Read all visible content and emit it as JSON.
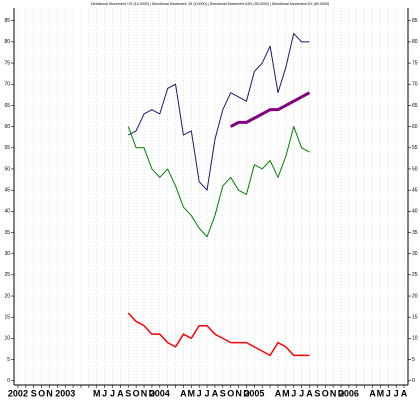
{
  "chart_data": {
    "type": "line",
    "title": "Directional Movement +DI (14.0000) | Directional Movement -DI (5.0000) | Directional Movement ADX (90.0000) | Directional Movement DX (50.0000)",
    "categories": [
      "2002",
      null,
      "S",
      "O",
      "N",
      null,
      "2003",
      null,
      null,
      null,
      "M",
      "J",
      "J",
      "A",
      "S",
      "O",
      "N",
      "D",
      "2004",
      null,
      null,
      "A",
      "M",
      "J",
      "J",
      "A",
      "S",
      "O",
      "N",
      "D",
      "2005",
      null,
      null,
      "A",
      "M",
      "J",
      "J",
      "A",
      "S",
      "O",
      "N",
      "D",
      "2006",
      null,
      null,
      "A",
      "M",
      "J",
      "J",
      "A"
    ],
    "series": [
      {
        "name": "+DI",
        "color": "#1a1a6e",
        "width": 1,
        "values": [
          null,
          null,
          null,
          null,
          null,
          null,
          null,
          null,
          null,
          null,
          null,
          null,
          null,
          null,
          58,
          59,
          63,
          64,
          63,
          69,
          70,
          58,
          59,
          47,
          45,
          57,
          64,
          68,
          67,
          66,
          73,
          75,
          79,
          68,
          74,
          82,
          80,
          80,
          null,
          null,
          null,
          null,
          null,
          null,
          null,
          null,
          null,
          null,
          null,
          null
        ]
      },
      {
        "name": "-DI",
        "color": "#008000",
        "width": 1,
        "values": [
          null,
          null,
          null,
          null,
          null,
          null,
          null,
          null,
          null,
          null,
          null,
          null,
          null,
          null,
          60,
          55,
          55,
          50,
          48,
          50,
          46,
          41,
          39,
          36,
          34,
          39,
          46,
          48,
          45,
          44,
          51,
          50,
          52,
          48,
          53,
          60,
          55,
          54,
          null,
          null,
          null,
          null,
          null,
          null,
          null,
          null,
          null,
          null,
          null,
          null
        ]
      },
      {
        "name": "ADX",
        "color": "#800080",
        "width": 3,
        "values": [
          null,
          null,
          null,
          null,
          null,
          null,
          null,
          null,
          null,
          null,
          null,
          null,
          null,
          null,
          null,
          null,
          null,
          null,
          null,
          null,
          null,
          null,
          null,
          null,
          null,
          null,
          null,
          60,
          61,
          61,
          62,
          63,
          64,
          64,
          65,
          66,
          67,
          68,
          null,
          null,
          null,
          null,
          null,
          null,
          null,
          null,
          null,
          null,
          null,
          null
        ]
      },
      {
        "name": "DX",
        "color": "#ff0000",
        "width": 1.5,
        "values": [
          null,
          null,
          null,
          null,
          null,
          null,
          null,
          null,
          null,
          null,
          null,
          null,
          null,
          null,
          16,
          14,
          13,
          11,
          11,
          9,
          8,
          11,
          10,
          13,
          13,
          11,
          10,
          9,
          9,
          9,
          8,
          7,
          6,
          9,
          8,
          6,
          6,
          6,
          null,
          null,
          null,
          null,
          null,
          null,
          null,
          null,
          null,
          null,
          null,
          null
        ]
      }
    ],
    "ylim": [
      -1,
      88
    ],
    "yticks": [
      0,
      5,
      10,
      15,
      20,
      25,
      30,
      35,
      40,
      45,
      50,
      55,
      60,
      65,
      70,
      75,
      80,
      85
    ],
    "grid": true
  }
}
